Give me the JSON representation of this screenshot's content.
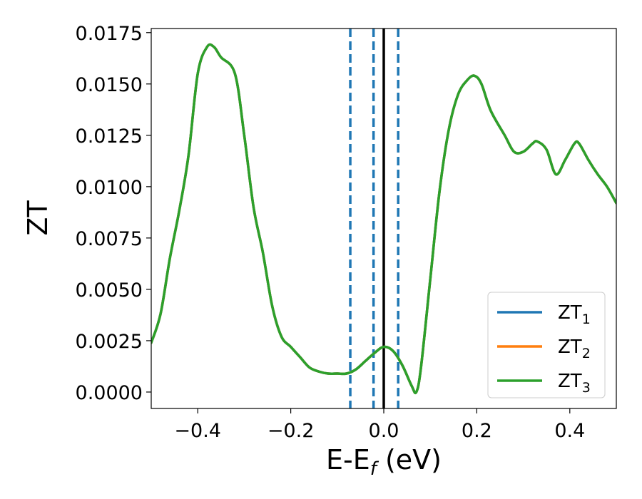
{
  "chart_data": {
    "type": "line",
    "title": "",
    "xlabel": "E-E",
    "xlabel_sub": "f",
    "xlabel_unit": " (eV)",
    "ylabel": "ZT",
    "xlim": [
      -0.5,
      0.5
    ],
    "ylim": [
      -0.0008,
      0.0177
    ],
    "xticks": [
      -0.4,
      -0.2,
      0.0,
      0.2,
      0.4
    ],
    "xtick_labels": [
      "−0.4",
      "−0.2",
      "0.0",
      "0.2",
      "0.4"
    ],
    "yticks": [
      0.0,
      0.0025,
      0.005,
      0.0075,
      0.01,
      0.0125,
      0.015,
      0.0175
    ],
    "ytick_labels": [
      "0.0000",
      "0.0025",
      "0.0050",
      "0.0075",
      "0.0100",
      "0.0125",
      "0.0150",
      "0.0175"
    ],
    "grid": false,
    "legend_position": "bottom-right",
    "x": [
      -0.5,
      -0.48,
      -0.46,
      -0.44,
      -0.42,
      -0.4,
      -0.38,
      -0.365,
      -0.35,
      -0.32,
      -0.3,
      -0.28,
      -0.26,
      -0.24,
      -0.22,
      -0.2,
      -0.18,
      -0.16,
      -0.14,
      -0.12,
      -0.1,
      -0.08,
      -0.06,
      -0.04,
      -0.02,
      0.0,
      0.02,
      0.04,
      0.06,
      0.07,
      0.08,
      0.1,
      0.12,
      0.14,
      0.16,
      0.18,
      0.195,
      0.21,
      0.23,
      0.26,
      0.28,
      0.3,
      0.32,
      0.33,
      0.35,
      0.37,
      0.39,
      0.41,
      0.42,
      0.44,
      0.46,
      0.48,
      0.5
    ],
    "series": [
      {
        "name": "ZT",
        "sub": "1",
        "color": "#1f77b4",
        "values": [
          0.0024,
          0.0038,
          0.0065,
          0.0088,
          0.0115,
          0.0155,
          0.0168,
          0.0168,
          0.0163,
          0.0155,
          0.0125,
          0.009,
          0.0068,
          0.0042,
          0.0027,
          0.0022,
          0.0017,
          0.0012,
          0.001,
          0.0009,
          0.0009,
          0.0009,
          0.0011,
          0.0015,
          0.0019,
          0.0022,
          0.002,
          0.0013,
          0.0003,
          0.0,
          0.0012,
          0.0055,
          0.0098,
          0.0128,
          0.0145,
          0.0152,
          0.0154,
          0.015,
          0.0137,
          0.0125,
          0.0117,
          0.0117,
          0.0121,
          0.0122,
          0.0118,
          0.0106,
          0.0113,
          0.0121,
          0.0121,
          0.0113,
          0.0106,
          0.01,
          0.0092
        ]
      },
      {
        "name": "ZT",
        "sub": "2",
        "color": "#ff7f0e",
        "values": [
          0.0024,
          0.0038,
          0.0065,
          0.0088,
          0.0115,
          0.0155,
          0.0168,
          0.0168,
          0.0163,
          0.0155,
          0.0125,
          0.009,
          0.0068,
          0.0042,
          0.0027,
          0.0022,
          0.0017,
          0.0012,
          0.001,
          0.0009,
          0.0009,
          0.0009,
          0.0011,
          0.0015,
          0.0019,
          0.0022,
          0.002,
          0.0013,
          0.0003,
          0.0,
          0.0012,
          0.0055,
          0.0098,
          0.0128,
          0.0145,
          0.0152,
          0.0154,
          0.015,
          0.0137,
          0.0125,
          0.0117,
          0.0117,
          0.0121,
          0.0122,
          0.0118,
          0.0106,
          0.0113,
          0.0121,
          0.0121,
          0.0113,
          0.0106,
          0.01,
          0.0092
        ]
      },
      {
        "name": "ZT",
        "sub": "3",
        "color": "#2ca02c",
        "values": [
          0.0024,
          0.0038,
          0.0065,
          0.0088,
          0.0115,
          0.0155,
          0.0168,
          0.0168,
          0.0163,
          0.0155,
          0.0125,
          0.009,
          0.0068,
          0.0042,
          0.0027,
          0.0022,
          0.0017,
          0.0012,
          0.001,
          0.0009,
          0.0009,
          0.0009,
          0.0011,
          0.0015,
          0.0019,
          0.0022,
          0.002,
          0.0013,
          0.0003,
          0.0,
          0.0012,
          0.0055,
          0.0098,
          0.0128,
          0.0145,
          0.0152,
          0.0154,
          0.015,
          0.0137,
          0.0125,
          0.0117,
          0.0117,
          0.0121,
          0.0122,
          0.0118,
          0.0106,
          0.0113,
          0.0121,
          0.0121,
          0.0113,
          0.0106,
          0.01,
          0.0092
        ]
      }
    ],
    "vlines": [
      {
        "x": 0.0,
        "style": "solid",
        "color": "#000000"
      },
      {
        "x": -0.072,
        "style": "dashed",
        "color": "#1f77b4"
      },
      {
        "x": -0.022,
        "style": "dashed",
        "color": "#1f77b4"
      },
      {
        "x": 0.031,
        "style": "dashed",
        "color": "#1f77b4"
      }
    ]
  }
}
